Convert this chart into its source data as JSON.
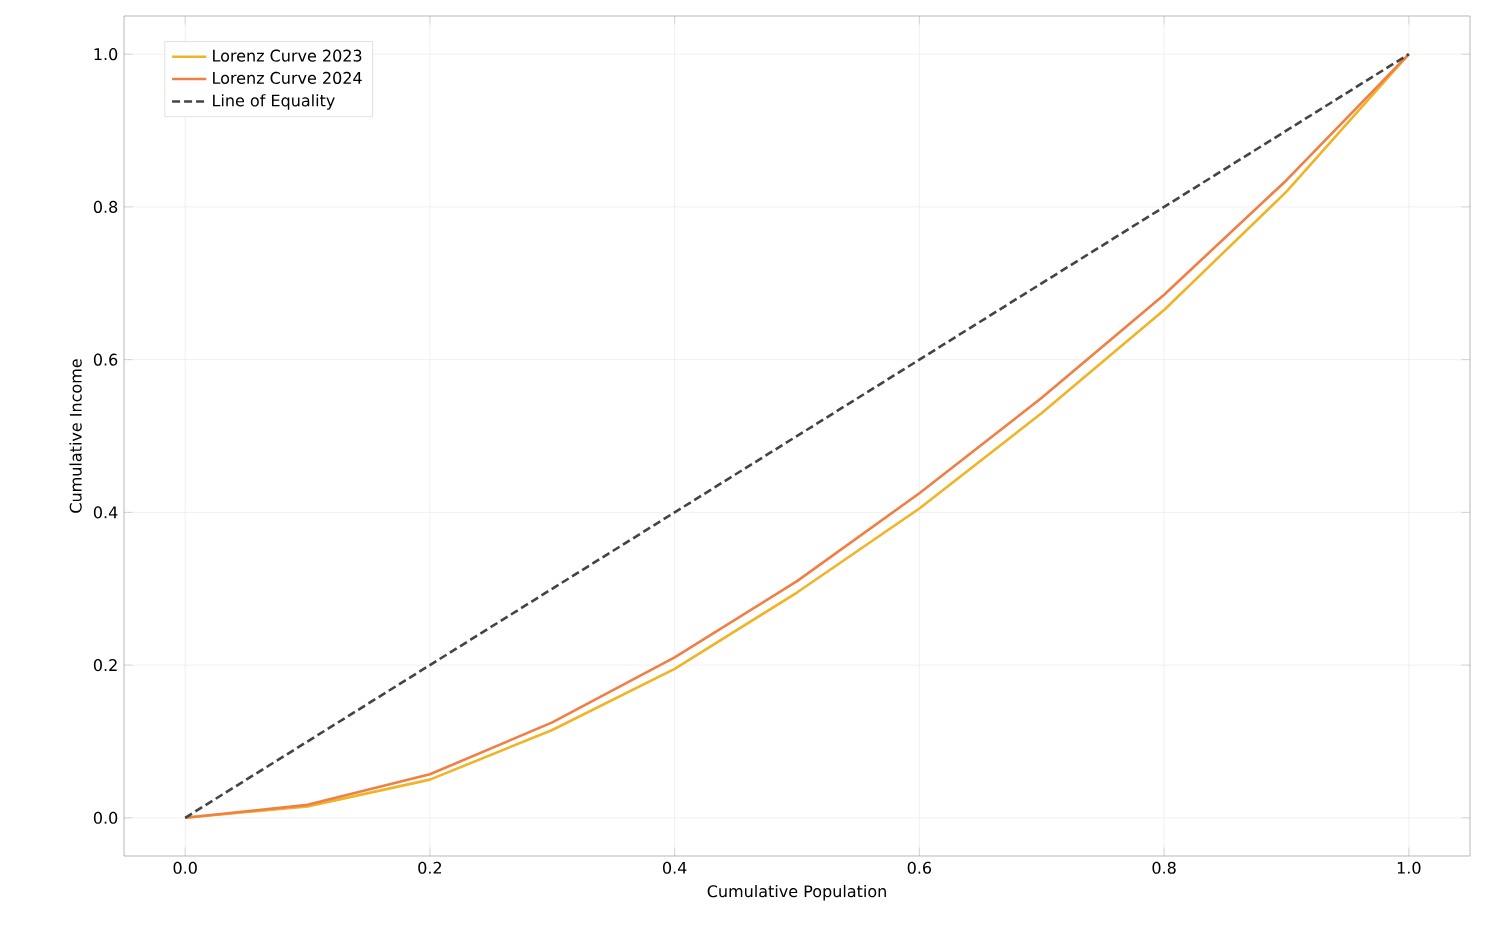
{
  "chart_data": {
    "type": "line",
    "xlabel": "Cumulative Population",
    "ylabel": "Cumulative Income",
    "series": [
      {
        "name": "Lorenz Curve 2023",
        "color": "#f0b429",
        "x": [
          0,
          0.1,
          0.2,
          0.3,
          0.4,
          0.5,
          0.6,
          0.7,
          0.8,
          0.9,
          1.0
        ],
        "values": [
          0,
          0.015,
          0.05,
          0.115,
          0.195,
          0.295,
          0.405,
          0.53,
          0.665,
          0.82,
          1.0
        ]
      },
      {
        "name": "Lorenz Curve 2024",
        "color": "#f07f45",
        "x": [
          0,
          0.1,
          0.2,
          0.3,
          0.4,
          0.5,
          0.6,
          0.7,
          0.8,
          0.9,
          1.0
        ],
        "values": [
          0,
          0.017,
          0.057,
          0.125,
          0.21,
          0.31,
          0.425,
          0.55,
          0.685,
          0.835,
          1.0
        ]
      },
      {
        "name": "Line of Equality",
        "color": "#444444",
        "line_style": "dashed",
        "x": [
          0,
          1.0
        ],
        "values": [
          0,
          1.0
        ]
      }
    ],
    "xlim": [
      -0.05,
      1.05
    ],
    "ylim": [
      -0.05,
      1.05
    ],
    "xticks": [
      {
        "value": 0,
        "label": "0.0"
      },
      0.2,
      0.4,
      0.6,
      0.8,
      {
        "value": 1,
        "label": "1.0"
      }
    ],
    "yticks": [
      {
        "value": 0,
        "label": "0.0"
      },
      0.2,
      0.4,
      0.6,
      0.8,
      {
        "value": 1,
        "label": "1.0"
      }
    ],
    "grid": true,
    "legend": "top left",
    "marker": "none"
  }
}
